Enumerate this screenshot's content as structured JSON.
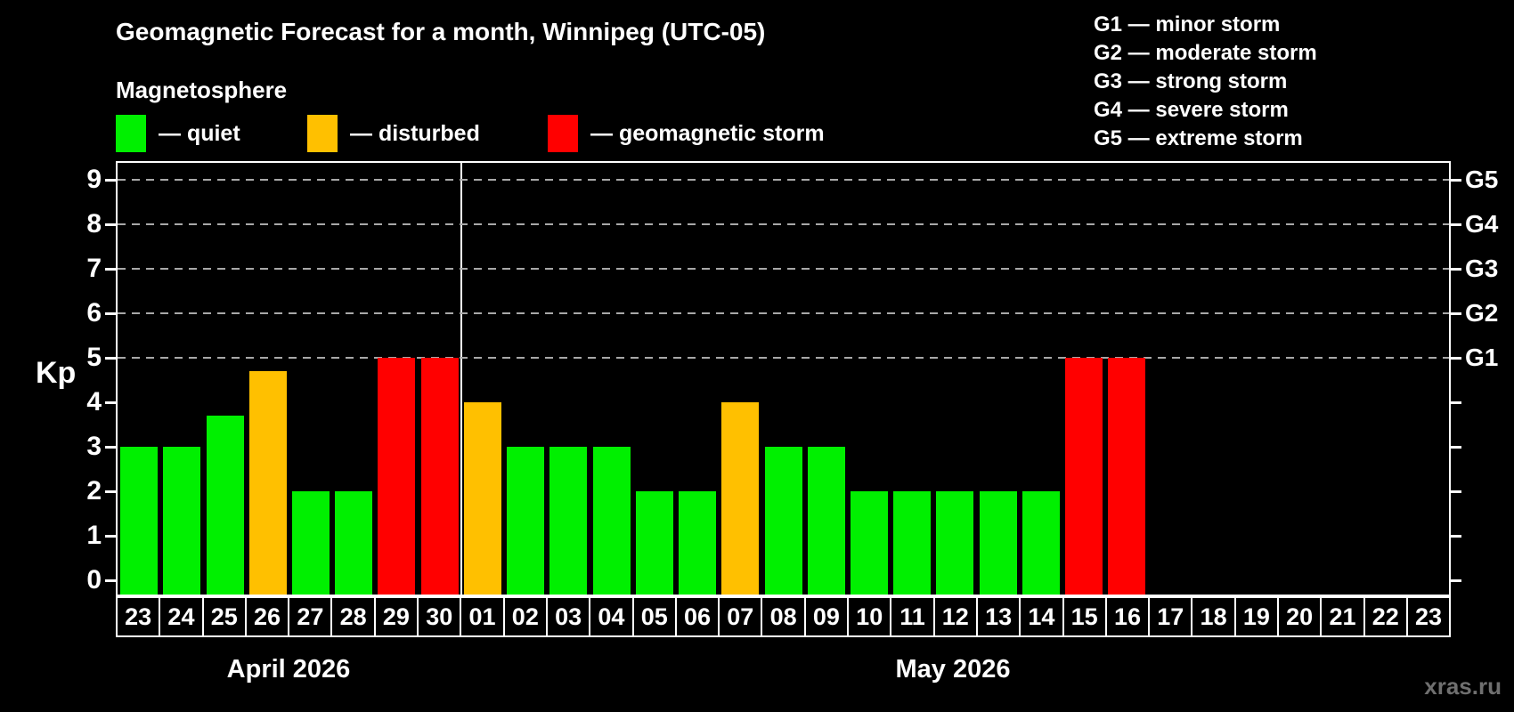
{
  "title": "Geomagnetic Forecast for a month, Winnipeg (UTC-05)",
  "subtitle": "Magnetosphere",
  "legend": {
    "quiet_label": "— quiet",
    "disturbed_label": "— disturbed",
    "storm_label": "— geomagnetic storm"
  },
  "g_legend": [
    "G1 — minor storm",
    "G2 — moderate storm",
    "G3 — strong storm",
    "G4 — severe storm",
    "G5 — extreme storm"
  ],
  "watermark": "xras.ru",
  "colors": {
    "quiet": "#00f000",
    "disturbed": "#ffc000",
    "storm": "#ff0000",
    "axis": "#ffffff",
    "grid": "#a8a8a8",
    "background": "#000000",
    "watermark": "#6f6f6f"
  },
  "chart_data": {
    "type": "bar",
    "ylabel": "Kp",
    "ylim": [
      0,
      9.4
    ],
    "yticks": [
      0,
      1,
      2,
      3,
      4,
      5,
      6,
      7,
      8,
      9
    ],
    "gridlines": [
      5,
      6,
      7,
      8,
      9
    ],
    "right_axis": [
      {
        "value": 5,
        "label": "G1"
      },
      {
        "value": 6,
        "label": "G2"
      },
      {
        "value": 7,
        "label": "G3"
      },
      {
        "value": 8,
        "label": "G4"
      },
      {
        "value": 9,
        "label": "G5"
      }
    ],
    "legend_position": "top",
    "grid": "dashed horizontal at Kp 5-9 only",
    "months": [
      {
        "label": "April 2026",
        "start_index": 0,
        "num_days": 8
      },
      {
        "label": "May 2026",
        "start_index": 8,
        "num_days": 23
      }
    ],
    "days": [
      {
        "day": "23",
        "kp": 3,
        "level": "quiet"
      },
      {
        "day": "24",
        "kp": 3,
        "level": "quiet"
      },
      {
        "day": "25",
        "kp": 3.7,
        "level": "quiet"
      },
      {
        "day": "26",
        "kp": 4.7,
        "level": "disturbed"
      },
      {
        "day": "27",
        "kp": 2,
        "level": "quiet"
      },
      {
        "day": "28",
        "kp": 2,
        "level": "quiet"
      },
      {
        "day": "29",
        "kp": 5,
        "level": "storm"
      },
      {
        "day": "30",
        "kp": 5,
        "level": "storm"
      },
      {
        "day": "01",
        "kp": 4,
        "level": "disturbed"
      },
      {
        "day": "02",
        "kp": 3,
        "level": "quiet"
      },
      {
        "day": "03",
        "kp": 3,
        "level": "quiet"
      },
      {
        "day": "04",
        "kp": 3,
        "level": "quiet"
      },
      {
        "day": "05",
        "kp": 2,
        "level": "quiet"
      },
      {
        "day": "06",
        "kp": 2,
        "level": "quiet"
      },
      {
        "day": "07",
        "kp": 4,
        "level": "disturbed"
      },
      {
        "day": "08",
        "kp": 3,
        "level": "quiet"
      },
      {
        "day": "09",
        "kp": 3,
        "level": "quiet"
      },
      {
        "day": "10",
        "kp": 2,
        "level": "quiet"
      },
      {
        "day": "11",
        "kp": 2,
        "level": "quiet"
      },
      {
        "day": "12",
        "kp": 2,
        "level": "quiet"
      },
      {
        "day": "13",
        "kp": 2,
        "level": "quiet"
      },
      {
        "day": "14",
        "kp": 2,
        "level": "quiet"
      },
      {
        "day": "15",
        "kp": 5,
        "level": "storm"
      },
      {
        "day": "16",
        "kp": 5,
        "level": "storm"
      },
      {
        "day": "17",
        "kp": null,
        "level": "none"
      },
      {
        "day": "18",
        "kp": null,
        "level": "none"
      },
      {
        "day": "19",
        "kp": null,
        "level": "none"
      },
      {
        "day": "20",
        "kp": null,
        "level": "none"
      },
      {
        "day": "21",
        "kp": null,
        "level": "none"
      },
      {
        "day": "22",
        "kp": null,
        "level": "none"
      },
      {
        "day": "23",
        "kp": null,
        "level": "none"
      }
    ]
  }
}
